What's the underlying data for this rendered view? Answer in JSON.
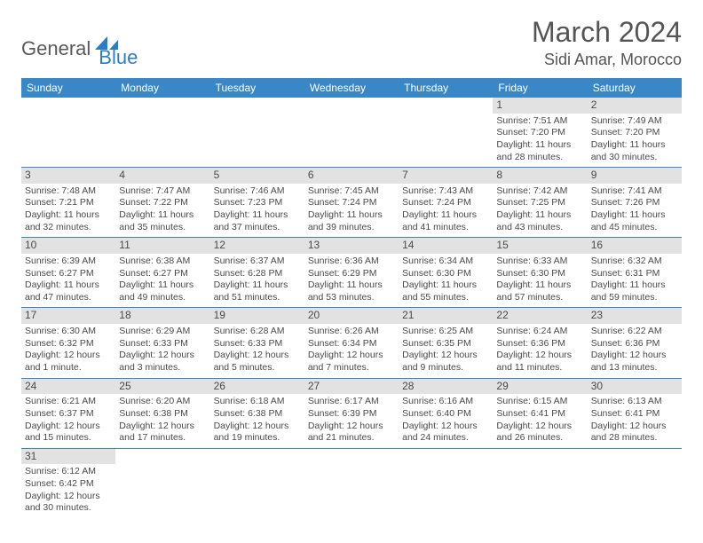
{
  "logo": {
    "text1": "General",
    "text2": "Blue"
  },
  "title": "March 2024",
  "location": "Sidi Amar, Morocco",
  "colors": {
    "header_bg": "#3a87c8",
    "header_fg": "#ffffff",
    "daynum_bg": "#e2e2e2",
    "divider": "#3a87c8",
    "text": "#4a4a4a",
    "logo_blue": "#2d7dc4"
  },
  "weekdays": [
    "Sunday",
    "Monday",
    "Tuesday",
    "Wednesday",
    "Thursday",
    "Friday",
    "Saturday"
  ],
  "weeks": [
    [
      null,
      null,
      null,
      null,
      null,
      {
        "n": "1",
        "sr": "7:51 AM",
        "ss": "7:20 PM",
        "dl": "11 hours and 28 minutes."
      },
      {
        "n": "2",
        "sr": "7:49 AM",
        "ss": "7:20 PM",
        "dl": "11 hours and 30 minutes."
      }
    ],
    [
      {
        "n": "3",
        "sr": "7:48 AM",
        "ss": "7:21 PM",
        "dl": "11 hours and 32 minutes."
      },
      {
        "n": "4",
        "sr": "7:47 AM",
        "ss": "7:22 PM",
        "dl": "11 hours and 35 minutes."
      },
      {
        "n": "5",
        "sr": "7:46 AM",
        "ss": "7:23 PM",
        "dl": "11 hours and 37 minutes."
      },
      {
        "n": "6",
        "sr": "7:45 AM",
        "ss": "7:24 PM",
        "dl": "11 hours and 39 minutes."
      },
      {
        "n": "7",
        "sr": "7:43 AM",
        "ss": "7:24 PM",
        "dl": "11 hours and 41 minutes."
      },
      {
        "n": "8",
        "sr": "7:42 AM",
        "ss": "7:25 PM",
        "dl": "11 hours and 43 minutes."
      },
      {
        "n": "9",
        "sr": "7:41 AM",
        "ss": "7:26 PM",
        "dl": "11 hours and 45 minutes."
      }
    ],
    [
      {
        "n": "10",
        "sr": "6:39 AM",
        "ss": "6:27 PM",
        "dl": "11 hours and 47 minutes."
      },
      {
        "n": "11",
        "sr": "6:38 AM",
        "ss": "6:27 PM",
        "dl": "11 hours and 49 minutes."
      },
      {
        "n": "12",
        "sr": "6:37 AM",
        "ss": "6:28 PM",
        "dl": "11 hours and 51 minutes."
      },
      {
        "n": "13",
        "sr": "6:36 AM",
        "ss": "6:29 PM",
        "dl": "11 hours and 53 minutes."
      },
      {
        "n": "14",
        "sr": "6:34 AM",
        "ss": "6:30 PM",
        "dl": "11 hours and 55 minutes."
      },
      {
        "n": "15",
        "sr": "6:33 AM",
        "ss": "6:30 PM",
        "dl": "11 hours and 57 minutes."
      },
      {
        "n": "16",
        "sr": "6:32 AM",
        "ss": "6:31 PM",
        "dl": "11 hours and 59 minutes."
      }
    ],
    [
      {
        "n": "17",
        "sr": "6:30 AM",
        "ss": "6:32 PM",
        "dl": "12 hours and 1 minute."
      },
      {
        "n": "18",
        "sr": "6:29 AM",
        "ss": "6:33 PM",
        "dl": "12 hours and 3 minutes."
      },
      {
        "n": "19",
        "sr": "6:28 AM",
        "ss": "6:33 PM",
        "dl": "12 hours and 5 minutes."
      },
      {
        "n": "20",
        "sr": "6:26 AM",
        "ss": "6:34 PM",
        "dl": "12 hours and 7 minutes."
      },
      {
        "n": "21",
        "sr": "6:25 AM",
        "ss": "6:35 PM",
        "dl": "12 hours and 9 minutes."
      },
      {
        "n": "22",
        "sr": "6:24 AM",
        "ss": "6:36 PM",
        "dl": "12 hours and 11 minutes."
      },
      {
        "n": "23",
        "sr": "6:22 AM",
        "ss": "6:36 PM",
        "dl": "12 hours and 13 minutes."
      }
    ],
    [
      {
        "n": "24",
        "sr": "6:21 AM",
        "ss": "6:37 PM",
        "dl": "12 hours and 15 minutes."
      },
      {
        "n": "25",
        "sr": "6:20 AM",
        "ss": "6:38 PM",
        "dl": "12 hours and 17 minutes."
      },
      {
        "n": "26",
        "sr": "6:18 AM",
        "ss": "6:38 PM",
        "dl": "12 hours and 19 minutes."
      },
      {
        "n": "27",
        "sr": "6:17 AM",
        "ss": "6:39 PM",
        "dl": "12 hours and 21 minutes."
      },
      {
        "n": "28",
        "sr": "6:16 AM",
        "ss": "6:40 PM",
        "dl": "12 hours and 24 minutes."
      },
      {
        "n": "29",
        "sr": "6:15 AM",
        "ss": "6:41 PM",
        "dl": "12 hours and 26 minutes."
      },
      {
        "n": "30",
        "sr": "6:13 AM",
        "ss": "6:41 PM",
        "dl": "12 hours and 28 minutes."
      }
    ],
    [
      {
        "n": "31",
        "sr": "6:12 AM",
        "ss": "6:42 PM",
        "dl": "12 hours and 30 minutes."
      },
      null,
      null,
      null,
      null,
      null,
      null
    ]
  ],
  "labels": {
    "sunrise": "Sunrise:",
    "sunset": "Sunset:",
    "daylight": "Daylight:"
  }
}
